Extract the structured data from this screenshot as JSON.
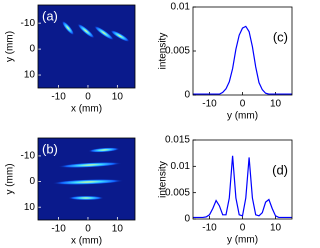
{
  "chart_data": [
    {
      "type": "image",
      "label": "(a)",
      "x_label": "x (mm)",
      "y_label": "y (mm)",
      "xlim": [
        -17,
        16
      ],
      "ylim": [
        -17,
        15
      ],
      "xticks": [
        -10,
        0,
        10
      ],
      "yticks": [
        -10,
        0,
        10
      ],
      "y_reversed": true
    },
    {
      "type": "line",
      "label": "(c)",
      "x_label": "y (mm)",
      "y_label": "intensity",
      "color": "#0000ff",
      "x": [
        -15,
        -14,
        -13,
        -12,
        -11,
        -10,
        -9,
        -8,
        -7,
        -6,
        -5,
        -4,
        -3,
        -2,
        -1,
        0,
        1,
        2,
        3,
        4,
        5,
        6,
        7,
        8,
        9,
        10,
        11,
        12,
        13,
        14,
        15
      ],
      "values": [
        0.0001,
        0.0001,
        0.0001,
        0.0001,
        0.0001,
        0.0001,
        0.0001,
        0.0001,
        0.0001,
        0.0003,
        0.0007,
        0.0015,
        0.003,
        0.0052,
        0.0068,
        0.0076,
        0.0078,
        0.0072,
        0.0055,
        0.0032,
        0.0014,
        0.0006,
        0.0002,
        0.0001,
        0.0001,
        0.0001,
        0.0001,
        0.0001,
        0.0001,
        0.0001,
        0.0001
      ],
      "xlim": [
        -15,
        15
      ],
      "ylim": [
        0,
        0.01
      ],
      "xticks": [
        -10,
        0,
        10
      ],
      "yticks": [
        0,
        0.005,
        0.01
      ]
    },
    {
      "type": "image",
      "label": "(b)",
      "x_label": "x (mm)",
      "y_label": "y (mm)",
      "xlim": [
        -17,
        16
      ],
      "ylim": [
        -17,
        15
      ],
      "xticks": [
        -10,
        0,
        10
      ],
      "yticks": [
        -10,
        0,
        10
      ],
      "y_reversed": true
    },
    {
      "type": "line",
      "label": "(d)",
      "x_label": "y (mm)",
      "y_label": "intensity",
      "color": "#0000ff",
      "x": [
        -15,
        -14,
        -13,
        -12,
        -11,
        -10,
        -9,
        -8,
        -7,
        -6,
        -5,
        -4,
        -3,
        -2,
        -1,
        0,
        1,
        2,
        3,
        4,
        5,
        6,
        7,
        8,
        9,
        10,
        11,
        12,
        13,
        14,
        15
      ],
      "values": [
        0.0003,
        0.0003,
        0.0003,
        0.0003,
        0.0004,
        0.0008,
        0.002,
        0.0035,
        0.0025,
        0.0008,
        0.0008,
        0.004,
        0.012,
        0.004,
        0.0008,
        0.0006,
        0.004,
        0.0117,
        0.004,
        0.0008,
        0.0006,
        0.0012,
        0.0032,
        0.0037,
        0.002,
        0.0006,
        0.0003,
        0.0003,
        0.0003,
        0.0003,
        0.0003
      ],
      "xlim": [
        -15,
        15
      ],
      "ylim": [
        0,
        0.015
      ],
      "xticks": [
        -10,
        0,
        10
      ],
      "yticks": [
        0,
        0.005,
        0.01,
        0.015
      ]
    }
  ]
}
